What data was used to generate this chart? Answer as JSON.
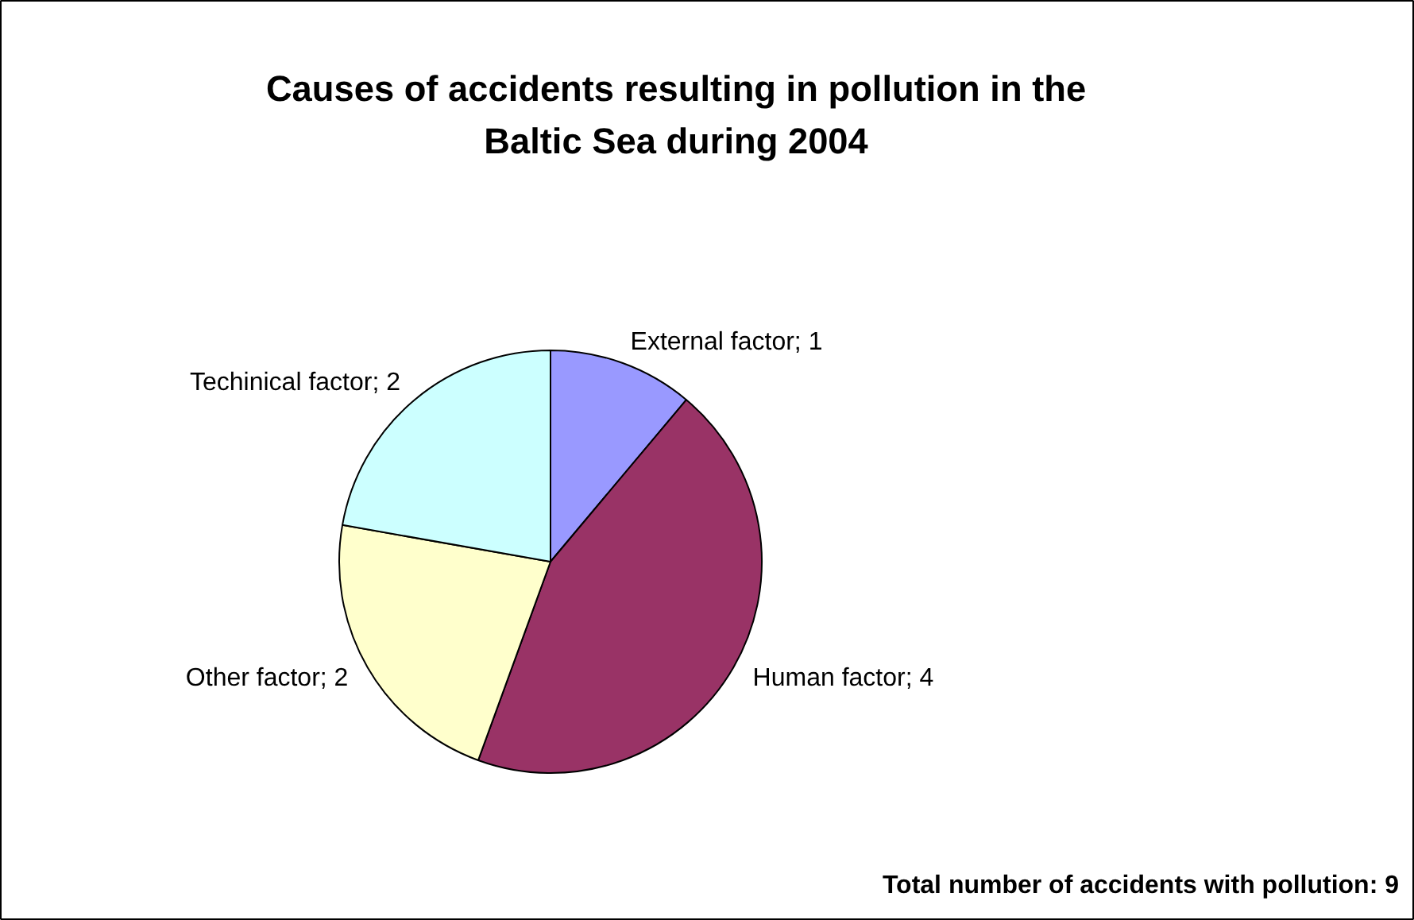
{
  "chart_data": {
    "type": "pie",
    "title": "Causes of accidents resulting in pollution in the Baltic Sea during 2004",
    "values": [
      1,
      4,
      2,
      2
    ],
    "value_labels": [
      "External factor; 1",
      "Human factor; 4",
      "Other factor; 2",
      "Techinical factor; 2"
    ],
    "colors": [
      "#9999ff",
      "#993366",
      "#ffffcc",
      "#ccffff"
    ],
    "annotations": [
      "Total number of accidents with pollution: 9"
    ]
  }
}
